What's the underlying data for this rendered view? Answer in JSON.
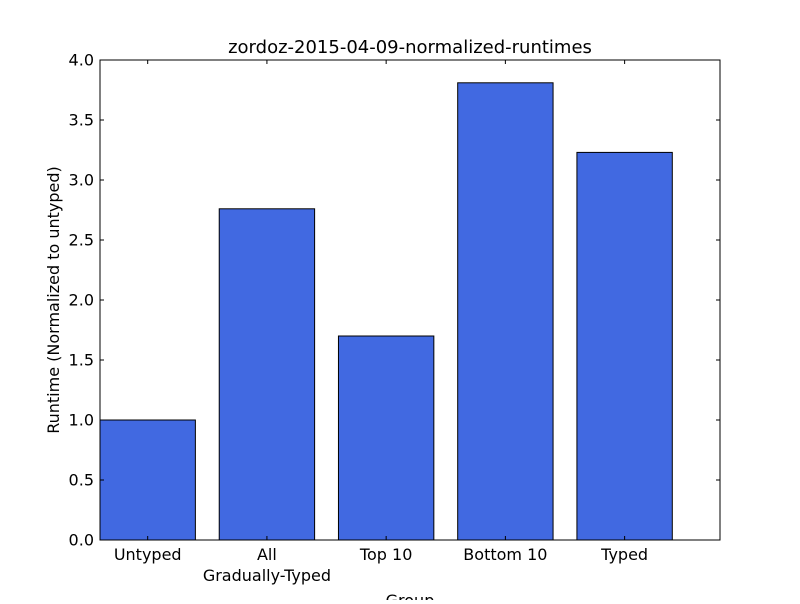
{
  "chart_data": {
    "type": "bar",
    "title": "zordoz-2015-04-09-normalized-runtimes",
    "xlabel": "Group",
    "ylabel": "Runtime (Normalized to untyped)",
    "categories": [
      "Untyped",
      "All\nGradually-Typed",
      "Top 10",
      "Bottom 10",
      "Typed"
    ],
    "values": [
      1.0,
      2.76,
      1.7,
      3.81,
      3.23
    ],
    "ylim": [
      0,
      4.0
    ],
    "yticks": [
      "0.0",
      "0.5",
      "1.0",
      "1.5",
      "2.0",
      "2.5",
      "3.0",
      "3.5",
      "4.0"
    ],
    "grid": false,
    "bar_color": "#4169e1",
    "edge_color": "#000000"
  }
}
